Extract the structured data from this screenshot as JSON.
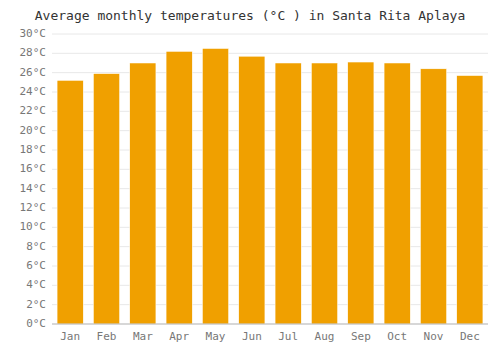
{
  "chart_data": {
    "type": "bar",
    "title": "Average monthly temperatures (°C ) in Santa Rita Aplaya",
    "categories": [
      "Jan",
      "Feb",
      "Mar",
      "Apr",
      "May",
      "Jun",
      "Jul",
      "Aug",
      "Sep",
      "Oct",
      "Nov",
      "Dec"
    ],
    "values": [
      25.2,
      25.9,
      27.0,
      28.2,
      28.5,
      27.7,
      27.0,
      27.0,
      27.1,
      27.0,
      26.4,
      25.7
    ],
    "color": "#F0A000",
    "ylim": [
      0,
      30
    ],
    "yticks": [
      {
        "value": 0,
        "label": "0°C"
      },
      {
        "value": 2,
        "label": "2°C"
      },
      {
        "value": 4,
        "label": "4°C"
      },
      {
        "value": 6,
        "label": "6°C"
      },
      {
        "value": 8,
        "label": "8°C"
      },
      {
        "value": 10,
        "label": "10°C"
      },
      {
        "value": 12,
        "label": "12°C"
      },
      {
        "value": 14,
        "label": "14°C"
      },
      {
        "value": 16,
        "label": "16°C"
      },
      {
        "value": 18,
        "label": "18°C"
      },
      {
        "value": 20,
        "label": "20°C"
      },
      {
        "value": 22,
        "label": "22°C"
      },
      {
        "value": 24,
        "label": "24°C"
      },
      {
        "value": 26,
        "label": "26°C"
      },
      {
        "value": 28,
        "label": "28°C"
      },
      {
        "value": 30,
        "label": "30°C"
      }
    ],
    "grid": true
  }
}
